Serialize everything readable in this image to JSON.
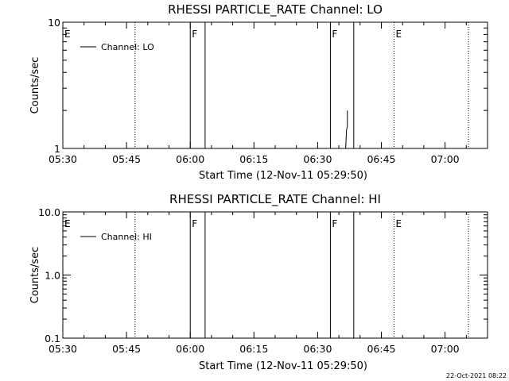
{
  "timestamp": "22-Oct-2021 08:22",
  "chart_data": [
    {
      "type": "line",
      "title": "RHESSI PARTICLE_RATE Channel: LO",
      "xlabel": "Start Time (12-Nov-11 05:29:50)",
      "ylabel": "Counts/sec",
      "y_scale": "log",
      "ylim": [
        1,
        10
      ],
      "yticks": [
        "1",
        "10"
      ],
      "xlim": [
        "05:30",
        "07:10"
      ],
      "xticks": [
        "05:30",
        "05:45",
        "06:00",
        "06:15",
        "06:30",
        "06:45",
        "07:00"
      ],
      "legend": {
        "position": "top-left",
        "label": "Channel: LO"
      },
      "events": [
        {
          "label": "E",
          "time": "05:30",
          "style": "dotted",
          "show_line": false
        },
        {
          "label": "",
          "time": "05:47",
          "style": "dotted",
          "show_line": true
        },
        {
          "label": "F",
          "time": "06:00",
          "style": "solid",
          "show_line": true
        },
        {
          "label": "",
          "time": "06:03.5",
          "style": "solid",
          "show_line": true
        },
        {
          "label": "F",
          "time": "06:33",
          "style": "solid",
          "show_line": true
        },
        {
          "label": "",
          "time": "06:38.5",
          "style": "solid",
          "show_line": true
        },
        {
          "label": "E",
          "time": "06:48",
          "style": "dotted",
          "show_line": true
        },
        {
          "label": "",
          "time": "07:05.5",
          "style": "dotted",
          "show_line": true
        }
      ],
      "series": [
        {
          "name": "Channel: LO",
          "x": [
            "06:36.6",
            "06:36.8",
            "06:37.0",
            "06:37.0"
          ],
          "y": [
            1.0,
            1.4,
            1.5,
            2.0
          ]
        }
      ]
    },
    {
      "type": "line",
      "title": "RHESSI PARTICLE_RATE Channel: HI",
      "xlabel": "Start Time (12-Nov-11 05:29:50)",
      "ylabel": "Counts/sec",
      "y_scale": "log",
      "ylim": [
        0.1,
        10
      ],
      "yticks": [
        "0.1",
        "1.0",
        "10.0"
      ],
      "xlim": [
        "05:30",
        "07:10"
      ],
      "xticks": [
        "05:30",
        "05:45",
        "06:00",
        "06:15",
        "06:30",
        "06:45",
        "07:00"
      ],
      "legend": {
        "position": "top-left",
        "label": "Channel: HI"
      },
      "events": [
        {
          "label": "E",
          "time": "05:30",
          "style": "dotted",
          "show_line": false
        },
        {
          "label": "",
          "time": "05:47",
          "style": "dotted",
          "show_line": true
        },
        {
          "label": "F",
          "time": "06:00",
          "style": "solid",
          "show_line": true
        },
        {
          "label": "",
          "time": "06:03.5",
          "style": "solid",
          "show_line": true
        },
        {
          "label": "F",
          "time": "06:33",
          "style": "solid",
          "show_line": true
        },
        {
          "label": "",
          "time": "06:38.5",
          "style": "solid",
          "show_line": true
        },
        {
          "label": "E",
          "time": "06:48",
          "style": "dotted",
          "show_line": true
        },
        {
          "label": "",
          "time": "07:05.5",
          "style": "dotted",
          "show_line": true
        }
      ],
      "series": [
        {
          "name": "Channel: HI",
          "x": [],
          "y": []
        }
      ]
    }
  ]
}
